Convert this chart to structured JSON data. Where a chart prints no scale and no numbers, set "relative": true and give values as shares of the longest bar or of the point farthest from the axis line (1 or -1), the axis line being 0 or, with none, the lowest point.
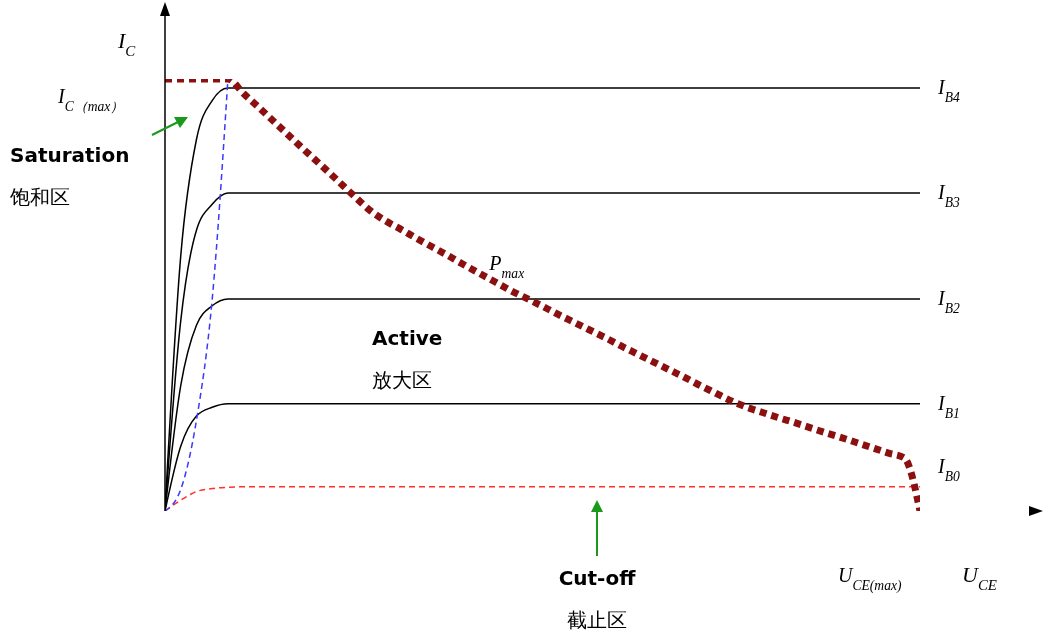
{
  "chart_data": {
    "type": "line",
    "relative": true,
    "xlabel": "U$_{CE}$",
    "ylabel": "I$_{C}$",
    "annotations": [
      "Saturation\n饱和区",
      "Active\n放大区",
      "Cut-off\n截止区",
      "I$_{C（max）}$",
      "U$_{CE(max)}$"
    ],
    "categories": [
      null,
      null,
      null,
      null,
      null,
      null,
      null,
      null,
      null,
      null,
      null,
      null,
      null,
      null,
      null,
      null,
      null,
      null,
      null,
      null,
      null,
      null,
      null,
      null,
      null,
      null,
      null,
      null,
      null,
      null,
      null,
      null,
      null,
      null,
      null,
      null,
      null,
      null,
      null,
      null,
      null,
      null,
      null,
      null,
      null,
      null,
      null,
      null,
      null
    ],
    "series": [
      {
        "name": "I$_{B4}$",
        "color": "#000000",
        "line_style": "solid",
        "values": [
          0,
          0.59,
          0.86,
          0.95,
          0.979,
          0.979,
          0.979,
          0.979,
          0.979,
          0.979,
          0.979,
          0.979,
          0.979,
          0.979,
          0.979,
          0.979,
          0.979,
          0.979,
          0.979,
          0.979,
          0.979,
          0.979,
          0.979,
          0.979,
          0.979,
          0.979,
          0.979,
          0.979,
          0.979,
          0.979,
          0.979,
          0.979,
          0.979,
          0.979,
          0.979,
          0.979,
          0.979,
          0.979,
          0.979,
          0.979,
          0.979,
          0.979,
          0.979,
          0.979,
          0.979,
          0.979,
          0.979,
          0.979,
          0.979
        ]
      },
      {
        "name": "I$_{B3}$",
        "color": "#000000",
        "line_style": "solid",
        "values": [
          0,
          0.44,
          0.65,
          0.71,
          0.736,
          0.736,
          0.736,
          0.736,
          0.736,
          0.736,
          0.736,
          0.736,
          0.736,
          0.736,
          0.736,
          0.736,
          0.736,
          0.736,
          0.736,
          0.736,
          0.736,
          0.736,
          0.736,
          0.736,
          0.736,
          0.736,
          0.736,
          0.736,
          0.736,
          0.736,
          0.736,
          0.736,
          0.736,
          0.736,
          0.736,
          0.736,
          0.736,
          0.736,
          0.736,
          0.736,
          0.736,
          0.736,
          0.736,
          0.736,
          0.736,
          0.736,
          0.736,
          0.736,
          0.736
        ]
      },
      {
        "name": "I$_{B2}$",
        "color": "#000000",
        "line_style": "solid",
        "values": [
          0,
          0.29,
          0.43,
          0.475,
          0.491,
          0.491,
          0.491,
          0.491,
          0.491,
          0.491,
          0.491,
          0.491,
          0.491,
          0.491,
          0.491,
          0.491,
          0.491,
          0.491,
          0.491,
          0.491,
          0.491,
          0.491,
          0.491,
          0.491,
          0.491,
          0.491,
          0.491,
          0.491,
          0.491,
          0.491,
          0.491,
          0.491,
          0.491,
          0.491,
          0.491,
          0.491,
          0.491,
          0.491,
          0.491,
          0.491,
          0.491,
          0.491,
          0.491,
          0.491,
          0.491,
          0.491,
          0.491,
          0.491,
          0.491
        ]
      },
      {
        "name": "I$_{B1}$",
        "color": "#000000",
        "line_style": "solid",
        "values": [
          0,
          0.15,
          0.22,
          0.24,
          0.248,
          0.248,
          0.248,
          0.248,
          0.248,
          0.248,
          0.248,
          0.248,
          0.248,
          0.248,
          0.248,
          0.248,
          0.248,
          0.248,
          0.248,
          0.248,
          0.248,
          0.248,
          0.248,
          0.248,
          0.248,
          0.248,
          0.248,
          0.248,
          0.248,
          0.248,
          0.248,
          0.248,
          0.248,
          0.248,
          0.248,
          0.248,
          0.248,
          0.248,
          0.248,
          0.248,
          0.248,
          0.248,
          0.248,
          0.248,
          0.248,
          0.248,
          0.248,
          0.248,
          0.248
        ]
      },
      {
        "name": "I$_{B0}$",
        "color": "#ff3030",
        "line_style": "dashed",
        "values": [
          0,
          0.025,
          0.045,
          0.052,
          0.055,
          0.056,
          0.056,
          0.056,
          0.056,
          0.056,
          0.056,
          0.056,
          0.056,
          0.056,
          0.056,
          0.056,
          0.056,
          0.056,
          0.056,
          0.056,
          0.056,
          0.056,
          0.056,
          0.056,
          0.056,
          0.056,
          0.056,
          0.056,
          0.056,
          0.056,
          0.056,
          0.056,
          0.056,
          0.056,
          0.056,
          0.056,
          0.056,
          0.056,
          0.056,
          0.056,
          0.056,
          0.056,
          0.056,
          0.056,
          0.056,
          0.056,
          0.056,
          0.056,
          0.056
        ]
      },
      {
        "name": "P$_{max}$",
        "color": "#8b1010",
        "line_style": "dotted",
        "values": [
          1,
          1,
          1,
          1,
          1,
          0.966,
          0.933,
          0.899,
          0.865,
          0.831,
          0.798,
          0.764,
          0.73,
          0.697,
          0.672,
          0.652,
          0.631,
          0.611,
          0.591,
          0.57,
          0.55,
          0.53,
          0.51,
          0.492,
          0.474,
          0.455,
          0.437,
          0.419,
          0.401,
          0.382,
          0.364,
          0.346,
          0.328,
          0.31,
          0.291,
          0.273,
          0.255,
          0.24,
          0.228,
          0.216,
          0.205,
          0.193,
          0.181,
          0.17,
          0.158,
          0.146,
          0.134,
          0.123,
          0
        ]
      },
      {
        "color": "#3a3aff",
        "line_style": "dashed",
        "values": [
          0,
          0.05,
          0.21,
          0.49,
          1,
          null,
          null,
          null,
          null,
          null,
          null,
          null,
          null,
          null,
          null,
          null,
          null,
          null,
          null,
          null,
          null,
          null,
          null,
          null,
          null,
          null,
          null,
          null,
          null,
          null,
          null,
          null,
          null,
          null,
          null,
          null,
          null,
          null,
          null,
          null,
          null,
          null,
          null,
          null,
          null,
          null,
          null,
          null,
          null
        ]
      }
    ]
  }
}
